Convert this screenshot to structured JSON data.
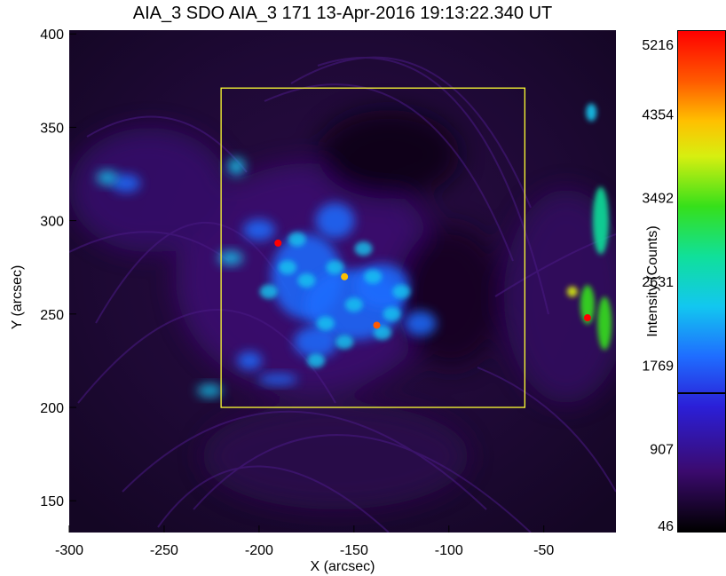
{
  "chart_data": {
    "type": "heatmap",
    "title": "AIA_3 SDO AIA_3 171 13-Apr-2016 19:13:22.340 UT",
    "xlabel": "X (arcsec)",
    "ylabel": "Y (arcsec)",
    "xlim": [
      -300,
      -12
    ],
    "ylim": [
      133,
      402
    ],
    "xticks": [
      -300,
      -250,
      -200,
      -150,
      -100,
      -50
    ],
    "yticks": [
      150,
      200,
      250,
      300,
      350,
      400
    ],
    "box": {
      "x": [
        -220,
        -60
      ],
      "y": [
        200,
        371
      ],
      "color": "#ffff33"
    },
    "colorbar": {
      "label": "Intensity (Counts)",
      "ticks": [
        46,
        907,
        1769,
        2631,
        3492,
        4354,
        5216
      ],
      "range": [
        46,
        5216
      ],
      "marker_value": 1500
    },
    "bright_features": [
      {
        "x": -190,
        "y": 288,
        "intensity": 4900
      },
      {
        "x": -27,
        "y": 248,
        "intensity": 5216
      },
      {
        "x": -138,
        "y": 244,
        "intensity": 4500
      },
      {
        "x": -155,
        "y": 270,
        "intensity": 4200
      }
    ]
  }
}
